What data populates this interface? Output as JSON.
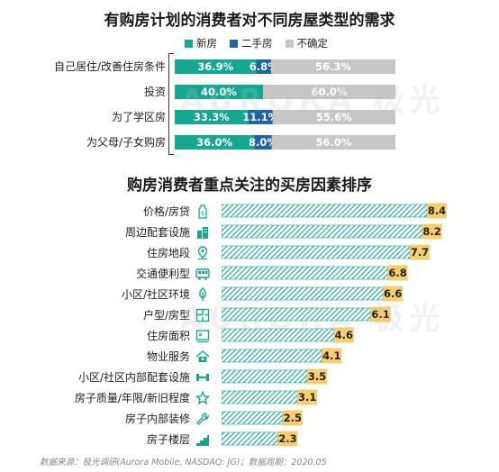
{
  "colors": {
    "new_home": "#13a88f",
    "second_hand": "#1f63a8",
    "uncertain": "#c6c6c6",
    "bar_accent": "#13a88f",
    "value_box": "#f7ce6e"
  },
  "watermark": "AURORA 极光",
  "footer": "数据来源：极光调研(Aurora Mobile, NASDAQ: JG)；数据周期：2020.05",
  "chart_data": [
    {
      "type": "bar",
      "stacked": true,
      "orientation": "horizontal",
      "title": "有购房计划的消费者对不同房屋类型的需求",
      "legend": [
        "新房",
        "二手房",
        "不确定"
      ],
      "legend_position": "top",
      "categories": [
        "自己居住/改善住房条件",
        "投资",
        "为了学区房",
        "为父母/子女购房"
      ],
      "series": [
        {
          "name": "新房",
          "values": [
            36.9,
            40.0,
            33.3,
            36.0
          ],
          "labels": [
            "36.9%",
            "40.0%",
            "33.3%",
            "36.0%"
          ]
        },
        {
          "name": "二手房",
          "values": [
            6.8,
            0,
            11.1,
            8.0
          ],
          "labels": [
            "6.8%",
            "",
            "11.1%",
            "8.0%"
          ]
        },
        {
          "name": "不确定",
          "values": [
            56.3,
            60.0,
            55.6,
            56.0
          ],
          "labels": [
            "56.3%",
            "60.0%",
            "55.6%",
            "56.0%"
          ]
        }
      ],
      "xlim": [
        0,
        100
      ]
    },
    {
      "type": "bar",
      "orientation": "horizontal",
      "title": "购房消费者重点关注的买房因素排序",
      "categories": [
        "价格/房贷",
        "周边配套设施",
        "住房地段",
        "交通便利型",
        "小区/社区环境",
        "户型/房型",
        "住房面积",
        "物业服务",
        "小区/社区内部配套设施",
        "房子质量/年限/新旧程度",
        "房子内部装修",
        "房子楼层"
      ],
      "values": [
        8.4,
        8.2,
        7.7,
        6.8,
        6.6,
        6.1,
        4.6,
        4.1,
        3.5,
        3.1,
        2.5,
        2.3
      ],
      "value_labels": [
        "8.4",
        "8.2",
        "7.7",
        "6.8",
        "6.6",
        "6.1",
        "4.6",
        "4.1",
        "3.5",
        "3.1",
        "2.5",
        "2.3"
      ],
      "icons": [
        "price-tag-icon",
        "buildings-icon",
        "location-pin-icon",
        "bus-icon",
        "tree-icon",
        "floor-plan-icon",
        "area-measure-icon",
        "house-service-icon",
        "dumbbell-icon",
        "star-icon",
        "wrench-icon",
        "stairs-icon"
      ],
      "xlim": [
        0,
        8.4
      ]
    }
  ]
}
